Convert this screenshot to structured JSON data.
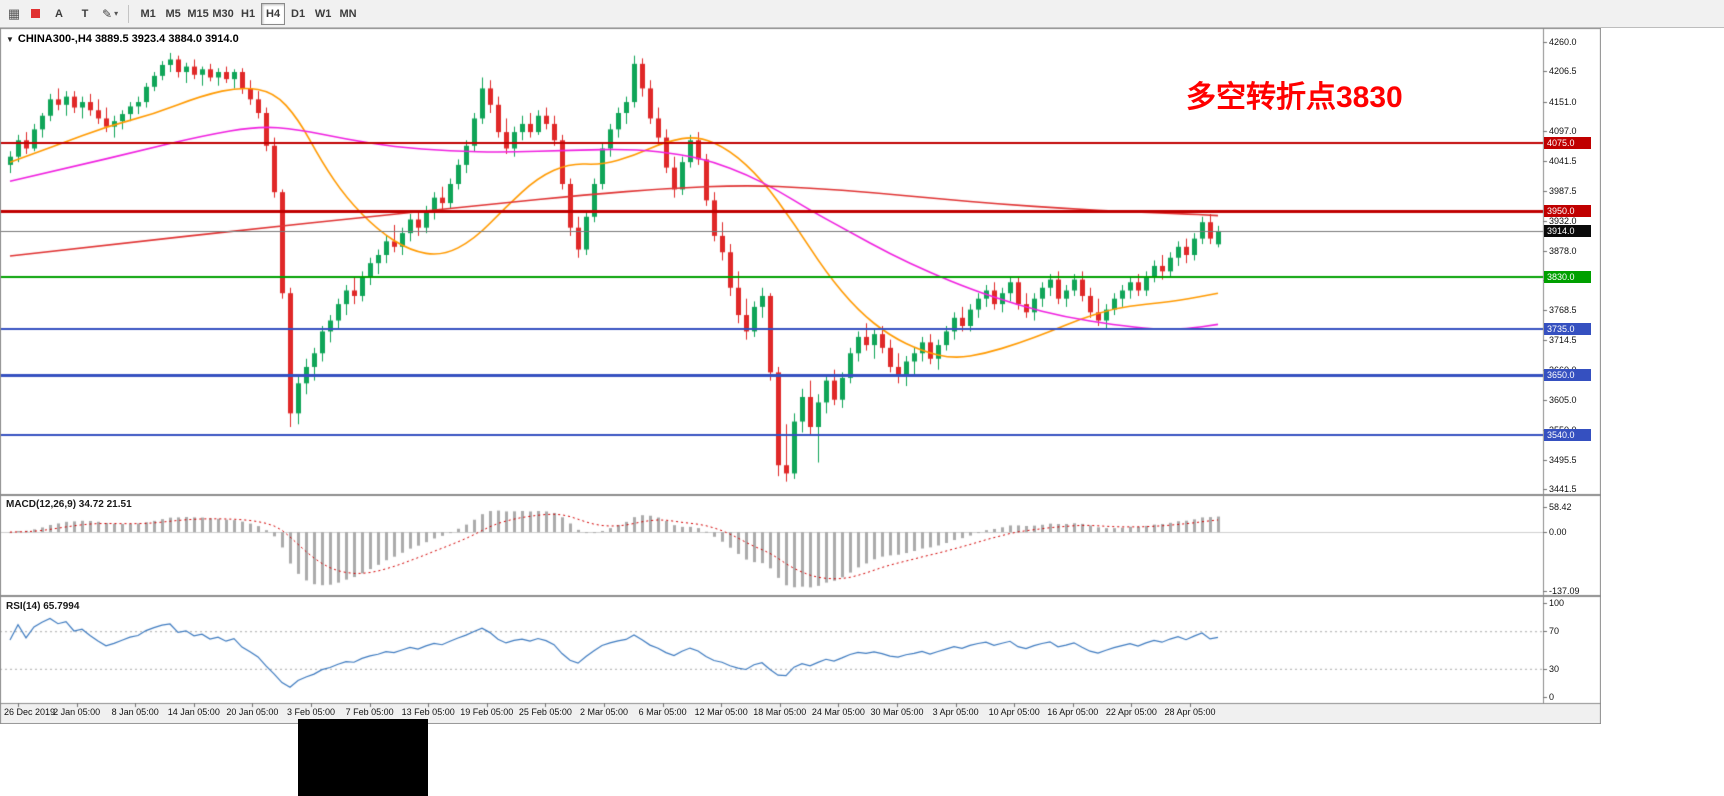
{
  "toolbar": {
    "chart_type_icon": "▦",
    "marker_color": "#E03030",
    "buttons": [
      {
        "name": "text-annotation-button",
        "label": "A"
      },
      {
        "name": "text-tool-button",
        "label": "T"
      }
    ],
    "pen_icon": "✎",
    "dropdown_arrow": "▾",
    "timeframes": [
      "M1",
      "M5",
      "M15",
      "M30",
      "H1",
      "H4",
      "D1",
      "W1",
      "MN"
    ],
    "active_timeframe": "H4"
  },
  "chart": {
    "symbol_dropdown_icon": "▼",
    "symbol_line": "CHINA300-,H4 3889.5 3923.4 3884.0 3914.0",
    "annotation": {
      "text": "多空转折点3830",
      "color": "#FF0000"
    },
    "current_price": {
      "label": "3914.0",
      "value": 3914.0,
      "badge_color": "#0A0A0A",
      "line_color": "#787878"
    },
    "levels": [
      {
        "label": "4075.0",
        "value": 4075.0,
        "color": "#C00000",
        "width": 2
      },
      {
        "label": "3950.0",
        "value": 3950.0,
        "color": "#C00000",
        "width": 3
      },
      {
        "label": "3830.0",
        "value": 3830.0,
        "color": "#00A000",
        "width": 2
      },
      {
        "label": "3735.0",
        "value": 3735.0,
        "color": "#3550C0",
        "width": 2
      },
      {
        "label": "3650.0",
        "value": 3650.0,
        "color": "#3550C0",
        "width": 3
      },
      {
        "label": "3540.0",
        "value": 3540.0,
        "color": "#3550C0",
        "width": 2
      }
    ],
    "price_axis": {
      "min": 3441.5,
      "max": 4260.0,
      "ticks": [
        "4260.0",
        "4206.5",
        "4151.0",
        "4097.0",
        "4041.5",
        "3987.5",
        "3932.0",
        "3878.0",
        "3824.0",
        "3768.5",
        "3714.5",
        "3660.0",
        "3605.0",
        "3550.0",
        "3495.5",
        "3441.5"
      ]
    },
    "time_axis": [
      "26 Dec 2019",
      "2 Jan 05:00",
      "8 Jan 05:00",
      "14 Jan 05:00",
      "20 Jan 05:00",
      "3 Feb 05:00",
      "7 Feb 05:00",
      "13 Feb 05:00",
      "19 Feb 05:00",
      "25 Feb 05:00",
      "2 Mar 05:00",
      "6 Mar 05:00",
      "12 Mar 05:00",
      "18 Mar 05:00",
      "24 Mar 05:00",
      "30 Mar 05:00",
      "3 Apr 05:00",
      "10 Apr 05:00",
      "16 Apr 05:00",
      "22 Apr 05:00",
      "28 Apr 05:00"
    ]
  },
  "macd": {
    "label": "MACD(12,26,9) 34.72 21.51",
    "fast": 12,
    "slow": 26,
    "signal": 9,
    "axis": [
      {
        "label": "58.42",
        "value": 58.42
      },
      {
        "label": "0.00",
        "value": 0
      },
      {
        "label": "-137.09",
        "value": -137.09
      }
    ]
  },
  "rsi": {
    "label": "RSI(14) 65.7994",
    "period": 14,
    "value": 65.7994,
    "axis": [
      {
        "label": "100",
        "value": 100
      },
      {
        "label": "70",
        "value": 70
      },
      {
        "label": "30",
        "value": 30
      },
      {
        "label": "0",
        "value": 0
      }
    ],
    "dashed_levels": [
      70,
      30
    ]
  },
  "colors": {
    "candle_up": "#0FA558",
    "candle_down": "#E02828",
    "ma_orange": "#FF9A00",
    "ma_magenta": "#F020E0",
    "ma_red": "#E03434",
    "macd_hist": "#ABABAB",
    "macd_signal": "#D40000",
    "rsi_line": "#3E7BC0",
    "rsi_levels": "#ABABAB"
  },
  "chart_data": {
    "type": "candlestick",
    "symbol": "CHINA300-",
    "timeframe": "H4",
    "ohlc_last": {
      "open": 3889.5,
      "high": 3923.4,
      "low": 3884.0,
      "close": 3914.0
    },
    "candles": [
      [
        4035,
        4060,
        4020,
        4050
      ],
      [
        4050,
        4090,
        4040,
        4080
      ],
      [
        4080,
        4095,
        4055,
        4065
      ],
      [
        4065,
        4110,
        4060,
        4100
      ],
      [
        4100,
        4130,
        4085,
        4125
      ],
      [
        4125,
        4165,
        4115,
        4155
      ],
      [
        4155,
        4175,
        4135,
        4145
      ],
      [
        4145,
        4170,
        4125,
        4160
      ],
      [
        4160,
        4170,
        4130,
        4140
      ],
      [
        4140,
        4160,
        4120,
        4150
      ],
      [
        4150,
        4165,
        4125,
        4135
      ],
      [
        4135,
        4155,
        4110,
        4120
      ],
      [
        4120,
        4140,
        4095,
        4105
      ],
      [
        4105,
        4125,
        4085,
        4115
      ],
      [
        4115,
        4135,
        4100,
        4128
      ],
      [
        4128,
        4150,
        4115,
        4142
      ],
      [
        4142,
        4160,
        4128,
        4150
      ],
      [
        4150,
        4185,
        4140,
        4178
      ],
      [
        4178,
        4205,
        4170,
        4198
      ],
      [
        4198,
        4225,
        4190,
        4218
      ],
      [
        4218,
        4240,
        4205,
        4228
      ],
      [
        4228,
        4235,
        4195,
        4205
      ],
      [
        4205,
        4222,
        4185,
        4215
      ],
      [
        4215,
        4228,
        4192,
        4200
      ],
      [
        4200,
        4215,
        4180,
        4210
      ],
      [
        4210,
        4220,
        4188,
        4195
      ],
      [
        4195,
        4212,
        4180,
        4205
      ],
      [
        4205,
        4215,
        4185,
        4192
      ],
      [
        4192,
        4210,
        4175,
        4205
      ],
      [
        4205,
        4212,
        4165,
        4175
      ],
      [
        4175,
        4190,
        4145,
        4155
      ],
      [
        4155,
        4170,
        4120,
        4130
      ],
      [
        4130,
        4140,
        4060,
        4070
      ],
      [
        4070,
        4085,
        3975,
        3985
      ],
      [
        3985,
        3990,
        3790,
        3800
      ],
      [
        3800,
        3810,
        3555,
        3580
      ],
      [
        3580,
        3650,
        3560,
        3635
      ],
      [
        3635,
        3680,
        3615,
        3665
      ],
      [
        3665,
        3700,
        3640,
        3690
      ],
      [
        3690,
        3740,
        3675,
        3730
      ],
      [
        3730,
        3760,
        3710,
        3750
      ],
      [
        3750,
        3790,
        3735,
        3780
      ],
      [
        3780,
        3815,
        3760,
        3805
      ],
      [
        3805,
        3830,
        3780,
        3795
      ],
      [
        3795,
        3840,
        3785,
        3830
      ],
      [
        3830,
        3865,
        3815,
        3855
      ],
      [
        3855,
        3880,
        3835,
        3870
      ],
      [
        3870,
        3905,
        3855,
        3895
      ],
      [
        3895,
        3925,
        3875,
        3885
      ],
      [
        3885,
        3920,
        3870,
        3910
      ],
      [
        3910,
        3945,
        3895,
        3935
      ],
      [
        3935,
        3950,
        3905,
        3920
      ],
      [
        3920,
        3960,
        3910,
        3950
      ],
      [
        3950,
        3985,
        3935,
        3975
      ],
      [
        3975,
        3995,
        3950,
        3965
      ],
      [
        3965,
        4010,
        3955,
        4000
      ],
      [
        4000,
        4045,
        3990,
        4035
      ],
      [
        4035,
        4080,
        4020,
        4070
      ],
      [
        4070,
        4130,
        4060,
        4120
      ],
      [
        4120,
        4195,
        4110,
        4175
      ],
      [
        4175,
        4190,
        4130,
        4145
      ],
      [
        4145,
        4160,
        4085,
        4095
      ],
      [
        4095,
        4120,
        4055,
        4065
      ],
      [
        4065,
        4105,
        4050,
        4095
      ],
      [
        4095,
        4125,
        4080,
        4110
      ],
      [
        4110,
        4130,
        4085,
        4095
      ],
      [
        4095,
        4135,
        4090,
        4125
      ],
      [
        4125,
        4140,
        4100,
        4110
      ],
      [
        4110,
        4125,
        4070,
        4080
      ],
      [
        4080,
        4090,
        3990,
        4000
      ],
      [
        4000,
        4010,
        3905,
        3920
      ],
      [
        3920,
        3940,
        3865,
        3880
      ],
      [
        3880,
        3950,
        3870,
        3940
      ],
      [
        3940,
        4010,
        3930,
        4000
      ],
      [
        4000,
        4075,
        3990,
        4065
      ],
      [
        4065,
        4110,
        4050,
        4100
      ],
      [
        4100,
        4140,
        4085,
        4130
      ],
      [
        4130,
        4160,
        4110,
        4150
      ],
      [
        4150,
        4235,
        4140,
        4220
      ],
      [
        4220,
        4230,
        4160,
        4175
      ],
      [
        4175,
        4190,
        4110,
        4120
      ],
      [
        4120,
        4140,
        4070,
        4085
      ],
      [
        4085,
        4100,
        4020,
        4030
      ],
      [
        4030,
        4050,
        3975,
        3990
      ],
      [
        3990,
        4050,
        3980,
        4040
      ],
      [
        4040,
        4090,
        4030,
        4080
      ],
      [
        4080,
        4095,
        4035,
        4045
      ],
      [
        4045,
        4055,
        3960,
        3970
      ],
      [
        3970,
        3985,
        3895,
        3905
      ],
      [
        3905,
        3930,
        3860,
        3875
      ],
      [
        3875,
        3890,
        3795,
        3810
      ],
      [
        3810,
        3840,
        3745,
        3760
      ],
      [
        3760,
        3790,
        3715,
        3730
      ],
      [
        3730,
        3785,
        3720,
        3775
      ],
      [
        3775,
        3810,
        3755,
        3795
      ],
      [
        3795,
        3800,
        3640,
        3655
      ],
      [
        3655,
        3665,
        3465,
        3485
      ],
      [
        3485,
        3560,
        3455,
        3470
      ],
      [
        3470,
        3580,
        3460,
        3565
      ],
      [
        3565,
        3625,
        3545,
        3610
      ],
      [
        3610,
        3640,
        3540,
        3555
      ],
      [
        3555,
        3615,
        3490,
        3600
      ],
      [
        3600,
        3650,
        3580,
        3640
      ],
      [
        3640,
        3660,
        3595,
        3605
      ],
      [
        3605,
        3655,
        3590,
        3645
      ],
      [
        3645,
        3700,
        3635,
        3690
      ],
      [
        3690,
        3730,
        3675,
        3720
      ],
      [
        3720,
        3745,
        3695,
        3705
      ],
      [
        3705,
        3735,
        3680,
        3725
      ],
      [
        3725,
        3740,
        3690,
        3700
      ],
      [
        3700,
        3715,
        3655,
        3665
      ],
      [
        3665,
        3690,
        3635,
        3650
      ],
      [
        3650,
        3685,
        3630,
        3675
      ],
      [
        3675,
        3700,
        3650,
        3690
      ],
      [
        3690,
        3720,
        3675,
        3710
      ],
      [
        3710,
        3725,
        3670,
        3680
      ],
      [
        3680,
        3715,
        3660,
        3705
      ],
      [
        3705,
        3740,
        3695,
        3730
      ],
      [
        3730,
        3765,
        3715,
        3755
      ],
      [
        3755,
        3775,
        3730,
        3740
      ],
      [
        3740,
        3780,
        3730,
        3770
      ],
      [
        3770,
        3800,
        3755,
        3790
      ],
      [
        3790,
        3815,
        3775,
        3805
      ],
      [
        3805,
        3820,
        3770,
        3780
      ],
      [
        3780,
        3810,
        3765,
        3800
      ],
      [
        3800,
        3830,
        3785,
        3820
      ],
      [
        3820,
        3830,
        3770,
        3780
      ],
      [
        3780,
        3800,
        3755,
        3765
      ],
      [
        3765,
        3800,
        3750,
        3790
      ],
      [
        3790,
        3820,
        3775,
        3810
      ],
      [
        3810,
        3835,
        3795,
        3825
      ],
      [
        3825,
        3840,
        3780,
        3790
      ],
      [
        3790,
        3815,
        3775,
        3805
      ],
      [
        3805,
        3835,
        3795,
        3825
      ],
      [
        3825,
        3840,
        3785,
        3795
      ],
      [
        3795,
        3810,
        3755,
        3765
      ],
      [
        3765,
        3790,
        3740,
        3750
      ],
      [
        3750,
        3780,
        3735,
        3770
      ],
      [
        3770,
        3800,
        3760,
        3790
      ],
      [
        3790,
        3815,
        3775,
        3805
      ],
      [
        3805,
        3830,
        3790,
        3820
      ],
      [
        3820,
        3835,
        3795,
        3805
      ],
      [
        3805,
        3840,
        3795,
        3830
      ],
      [
        3830,
        3860,
        3820,
        3850
      ],
      [
        3850,
        3870,
        3825,
        3840
      ],
      [
        3840,
        3875,
        3830,
        3865
      ],
      [
        3865,
        3895,
        3850,
        3885
      ],
      [
        3885,
        3900,
        3855,
        3870
      ],
      [
        3870,
        3910,
        3860,
        3900
      ],
      [
        3900,
        3940,
        3890,
        3930
      ],
      [
        3930,
        3945,
        3890,
        3900
      ],
      [
        3889.5,
        3923.4,
        3884,
        3914
      ]
    ],
    "ma_lines": [
      {
        "name": "ma-orange",
        "points": [
          [
            0,
            4040
          ],
          [
            6,
            4072
          ],
          [
            12,
            4105
          ],
          [
            18,
            4128
          ],
          [
            24,
            4162
          ],
          [
            29,
            4178
          ],
          [
            33,
            4168
          ],
          [
            36,
            4120
          ],
          [
            39,
            4040
          ],
          [
            42,
            3975
          ],
          [
            46,
            3915
          ],
          [
            50,
            3878
          ],
          [
            54,
            3868
          ],
          [
            58,
            3898
          ],
          [
            62,
            3958
          ],
          [
            66,
            4012
          ],
          [
            70,
            4038
          ],
          [
            74,
            4035
          ],
          [
            78,
            4052
          ],
          [
            82,
            4078
          ],
          [
            86,
            4088
          ],
          [
            90,
            4062
          ],
          [
            94,
            4008
          ],
          [
            98,
            3928
          ],
          [
            102,
            3838
          ],
          [
            106,
            3768
          ],
          [
            110,
            3722
          ],
          [
            114,
            3694
          ],
          [
            118,
            3680
          ],
          [
            122,
            3690
          ],
          [
            126,
            3708
          ],
          [
            130,
            3730
          ],
          [
            134,
            3754
          ],
          [
            138,
            3772
          ],
          [
            142,
            3780
          ],
          [
            146,
            3786
          ],
          [
            151,
            3800
          ]
        ]
      },
      {
        "name": "ma-magenta",
        "points": [
          [
            0,
            4005
          ],
          [
            8,
            4032
          ],
          [
            16,
            4060
          ],
          [
            24,
            4088
          ],
          [
            31,
            4106
          ],
          [
            36,
            4100
          ],
          [
            42,
            4082
          ],
          [
            48,
            4068
          ],
          [
            55,
            4060
          ],
          [
            62,
            4058
          ],
          [
            70,
            4062
          ],
          [
            78,
            4064
          ],
          [
            84,
            4054
          ],
          [
            88,
            4040
          ],
          [
            92,
            4018
          ],
          [
            96,
            3988
          ],
          [
            100,
            3952
          ],
          [
            105,
            3912
          ],
          [
            110,
            3872
          ],
          [
            115,
            3838
          ],
          [
            120,
            3808
          ],
          [
            126,
            3778
          ],
          [
            132,
            3756
          ],
          [
            138,
            3742
          ],
          [
            143,
            3734
          ],
          [
            147,
            3734
          ],
          [
            151,
            3743
          ]
        ]
      },
      {
        "name": "ma-red",
        "points": [
          [
            0,
            3868
          ],
          [
            15,
            3893
          ],
          [
            30,
            3917
          ],
          [
            45,
            3940
          ],
          [
            60,
            3963
          ],
          [
            72,
            3980
          ],
          [
            82,
            3992
          ],
          [
            92,
            3998
          ],
          [
            100,
            3993
          ],
          [
            108,
            3984
          ],
          [
            116,
            3973
          ],
          [
            124,
            3963
          ],
          [
            132,
            3955
          ],
          [
            140,
            3949
          ],
          [
            146,
            3946
          ],
          [
            151,
            3942
          ]
        ]
      }
    ]
  }
}
